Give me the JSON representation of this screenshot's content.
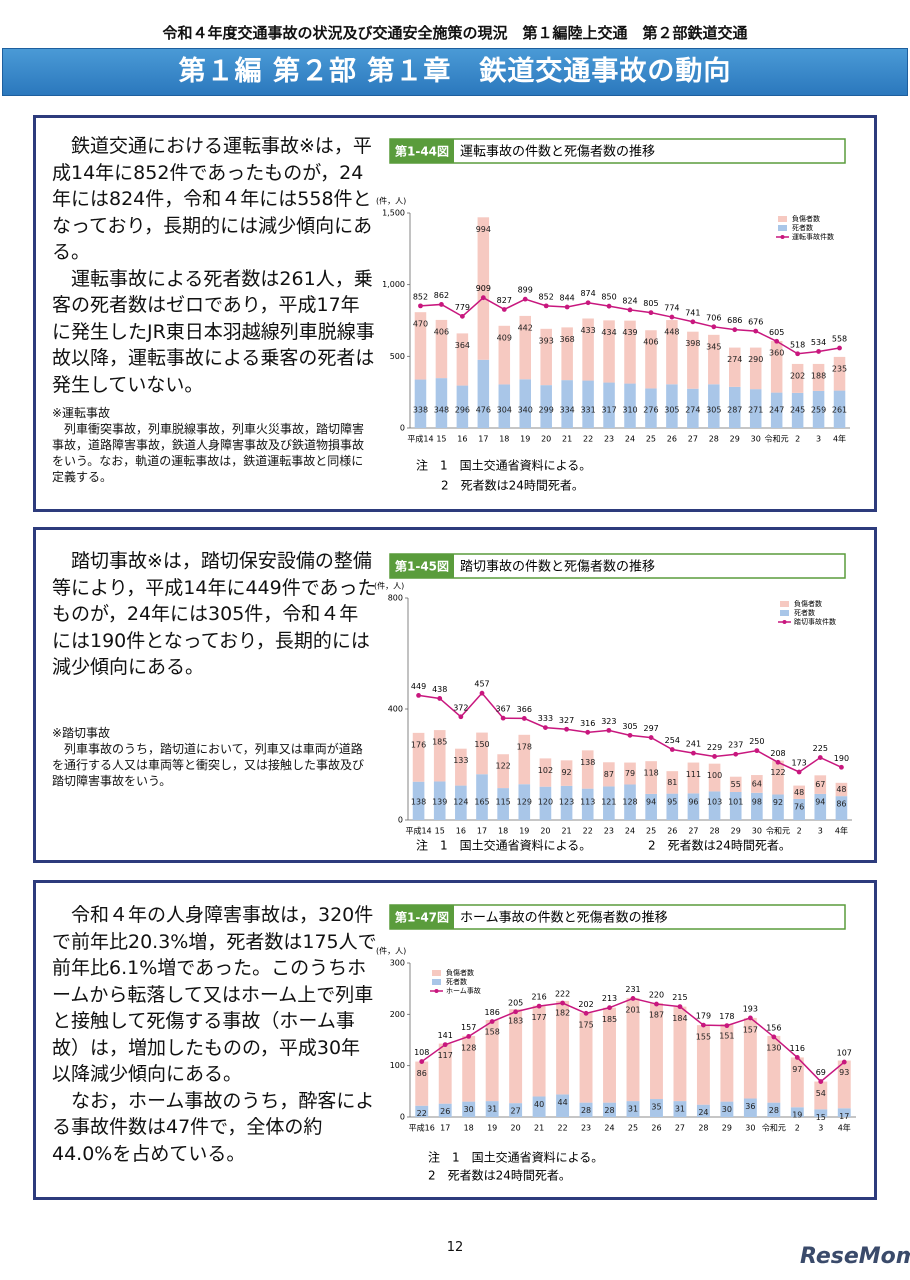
{
  "header": "令和４年度交通事故の状況及び交通安全施策の現況　第１編陸上交通　第２部鉄道交通",
  "title": "第１編 第２部 第１章　鉄道交通事故の動向",
  "sections": [
    {
      "paragraphs": [
        "鉄道交通における運転事故※は，平成14年に852件であったものが，24年には824件，令和４年には558件となっており，長期的には減少傾向にある。",
        "運転事故による死者数は261人，乗客の死者数はゼロであり，平成17年に発生したJR東日本羽越線列車脱線事故以降，運転事故による乗客の死者は発生していない。"
      ],
      "footnote": {
        "title": "※運転事故",
        "text": "列車衝突事故，列車脱線事故，列車火災事故，踏切障害事故，道路障害事故，鉄道人身障害事故及び鉄道物損事故をいう。なお，軌道の運転事故は，鉄道運転事故と同様に定義する。"
      }
    },
    {
      "paragraphs": [
        "踏切事故※は，踏切保安設備の整備等により，平成14年に449件であったものが，24年には305件，令和４年には190件となっており，長期的には減少傾向にある。"
      ],
      "footnote": {
        "title": "※踏切事故",
        "text": "列車事故のうち，踏切道において，列車又は車両が道路を通行する人又は車両等と衝突し，又は接触した事故及び踏切障害事故をいう。"
      }
    },
    {
      "paragraphs": [
        "令和４年の人身障害事故は，320件で前年比20.3%増，死者数は175人で前年比6.1%増であった。このうちホームから転落して又はホーム上で列車と接触して死傷する事故（ホーム事故）は，増加したものの，平成30年以降減少傾向にある。",
        "なお，ホーム事故のうち，酔客による事故件数は47件で，全体の約44.0%を占めている。"
      ]
    }
  ],
  "chart_data": [
    {
      "type": "combo",
      "figure_label": "第1-44図",
      "title": "運転事故の件数と死傷者数の推移",
      "y_label": "(件，人)",
      "categories": [
        "平成14",
        "15",
        "16",
        "17",
        "18",
        "19",
        "20",
        "21",
        "22",
        "23",
        "24",
        "25",
        "26",
        "27",
        "28",
        "29",
        "30",
        "令和元",
        "2",
        "3",
        "4年"
      ],
      "series": [
        {
          "name": "負傷者数",
          "color": "#f6c9c1",
          "mark": "bar",
          "values": [
            470,
            406,
            364,
            994,
            409,
            442,
            393,
            368,
            433,
            434,
            439,
            406,
            448,
            398,
            345,
            274,
            290,
            360,
            202,
            188,
            235
          ]
        },
        {
          "name": "死者数",
          "color": "#a9c6e8",
          "mark": "bar",
          "values": [
            338,
            348,
            296,
            476,
            304,
            340,
            299,
            334,
            331,
            317,
            310,
            276,
            305,
            274,
            305,
            287,
            271,
            247,
            245,
            259,
            261
          ]
        },
        {
          "name": "運転事故件数",
          "color": "#c8177e",
          "mark": "line",
          "values": [
            852,
            862,
            779,
            909,
            827,
            899,
            852,
            844,
            874,
            850,
            824,
            805,
            774,
            741,
            706,
            686,
            676,
            605,
            518,
            534,
            558
          ]
        }
      ],
      "ylim": [
        0,
        1500
      ],
      "yticks": [
        0,
        500,
        {
          "value": 1000,
          "label": "1,000"
        },
        {
          "value": 1500,
          "label": "1,500"
        }
      ],
      "legend": "top-right",
      "notes": [
        "注　1　国土交通省資料による。",
        "2　死者数は24時間死者。"
      ]
    },
    {
      "type": "combo",
      "figure_label": "第1-45図",
      "title": "踏切事故の件数と死傷者数の推移",
      "y_label": "(件，人)",
      "categories": [
        "平成14",
        "15",
        "16",
        "17",
        "18",
        "19",
        "20",
        "21",
        "22",
        "23",
        "24",
        "25",
        "26",
        "27",
        "28",
        "29",
        "30",
        "令和元",
        "2",
        "3",
        "4年"
      ],
      "series": [
        {
          "name": "負傷者数",
          "color": "#f6c9c1",
          "mark": "bar",
          "values": [
            176,
            185,
            133,
            150,
            122,
            178,
            102,
            92,
            138,
            87,
            79,
            118,
            81,
            111,
            100,
            55,
            64,
            122,
            48,
            67,
            48
          ]
        },
        {
          "name": "死者数",
          "color": "#a9c6e8",
          "mark": "bar",
          "values": [
            138,
            139,
            124,
            165,
            115,
            129,
            120,
            123,
            113,
            121,
            128,
            94,
            95,
            96,
            103,
            101,
            98,
            92,
            76,
            94,
            86
          ]
        },
        {
          "name": "踏切事故件数",
          "color": "#c8177e",
          "mark": "line",
          "values": [
            449,
            438,
            372,
            457,
            367,
            366,
            333,
            327,
            316,
            323,
            305,
            297,
            254,
            241,
            229,
            237,
            250,
            208,
            173,
            225,
            190
          ]
        }
      ],
      "ylim": [
        0,
        800
      ],
      "yticks": [
        0,
        400,
        800
      ],
      "legend": "top-right",
      "notes": [
        "注　1　国土交通省資料による。",
        "2　死者数は24時間死者。"
      ]
    },
    {
      "type": "combo",
      "figure_label": "第1-47図",
      "title": "ホーム事故の件数と死傷者数の推移",
      "y_label": "(件，人)",
      "categories": [
        "平成16",
        "17",
        "18",
        "19",
        "20",
        "21",
        "22",
        "23",
        "24",
        "25",
        "26",
        "27",
        "28",
        "29",
        "30",
        "令和元",
        "2",
        "3",
        "4年"
      ],
      "series": [
        {
          "name": "負傷者数",
          "color": "#f6c9c1",
          "mark": "bar",
          "values": [
            86,
            117,
            128,
            158,
            183,
            177,
            182,
            175,
            185,
            201,
            187,
            184,
            155,
            151,
            157,
            130,
            97,
            54,
            93
          ]
        },
        {
          "name": "死者数",
          "color": "#a9c6e8",
          "mark": "bar",
          "values": [
            22,
            26,
            30,
            31,
            27,
            40,
            44,
            28,
            28,
            31,
            35,
            31,
            24,
            30,
            36,
            28,
            19,
            15,
            17
          ]
        },
        {
          "name": "ホーム事故",
          "color": "#c8177e",
          "mark": "line",
          "values": [
            108,
            141,
            157,
            186,
            205,
            216,
            222,
            202,
            213,
            231,
            220,
            215,
            179,
            178,
            193,
            156,
            116,
            69,
            107
          ]
        }
      ],
      "ylim": [
        0,
        300
      ],
      "yticks": [
        0,
        100,
        200,
        300
      ],
      "legend": "top-left",
      "notes": [
        "注　1　国土交通省資料による。",
        "2　死者数は24時間死者。"
      ]
    }
  ],
  "page_number": "12",
  "watermark": "ReseMom"
}
